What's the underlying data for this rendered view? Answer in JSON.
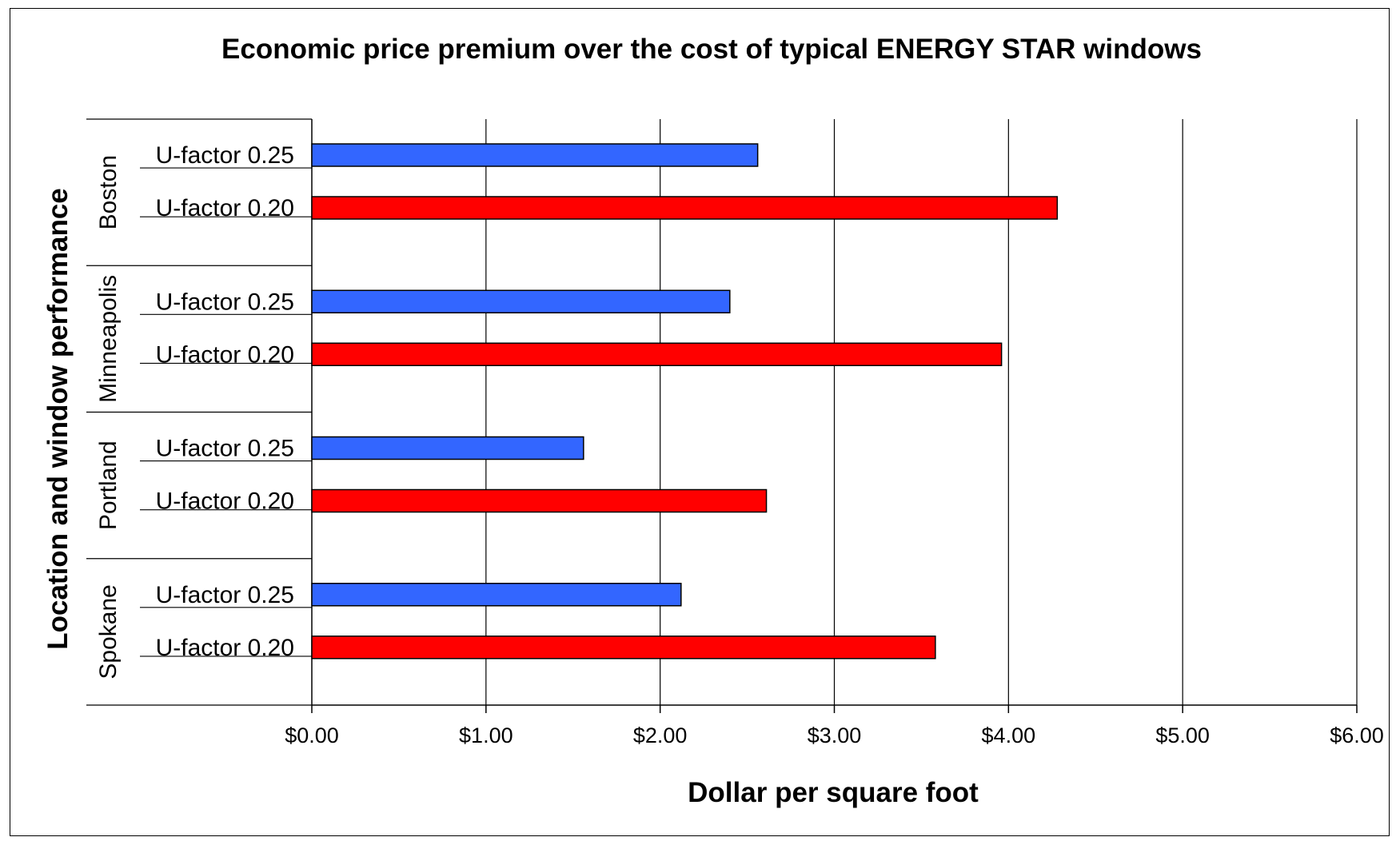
{
  "chart_data": {
    "type": "bar",
    "orientation": "horizontal",
    "title": "Economic price premium over the cost of typical ENERGY STAR windows",
    "xlabel": "Dollar per square foot",
    "ylabel": "Location and window performance",
    "xlim": [
      0,
      6
    ],
    "x_ticks": [
      "$0.00",
      "$1.00",
      "$2.00",
      "$3.00",
      "$4.00",
      "$5.00",
      "$6.00"
    ],
    "grid": "vertical",
    "groups": [
      {
        "name": "Boston",
        "bars": [
          {
            "label": "U-factor 0.25",
            "value": 2.56,
            "color": "#3366FF"
          },
          {
            "label": "U-factor 0.20",
            "value": 4.28,
            "color": "#FF0000"
          }
        ]
      },
      {
        "name": "Minneapolis",
        "bars": [
          {
            "label": "U-factor 0.25",
            "value": 2.4,
            "color": "#3366FF"
          },
          {
            "label": "U-factor 0.20",
            "value": 3.96,
            "color": "#FF0000"
          }
        ]
      },
      {
        "name": "Portland",
        "bars": [
          {
            "label": "U-factor 0.25",
            "value": 1.56,
            "color": "#3366FF"
          },
          {
            "label": "U-factor 0.20",
            "value": 2.61,
            "color": "#FF0000"
          }
        ]
      },
      {
        "name": "Spokane",
        "bars": [
          {
            "label": "U-factor 0.25",
            "value": 2.12,
            "color": "#3366FF"
          },
          {
            "label": "U-factor 0.20",
            "value": 3.58,
            "color": "#FF0000"
          }
        ]
      }
    ]
  }
}
